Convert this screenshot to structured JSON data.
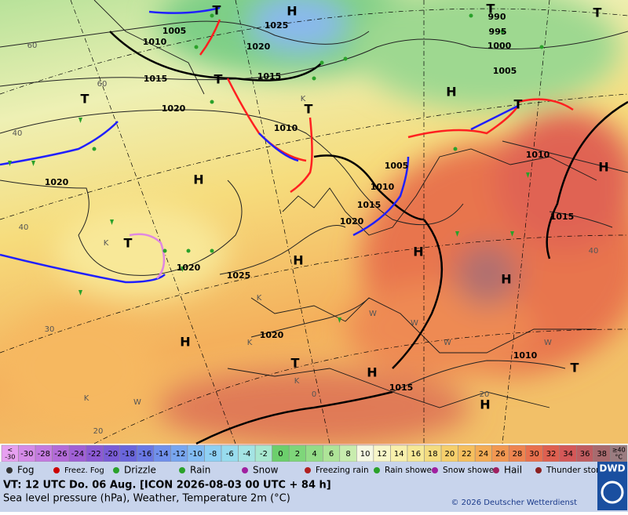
{
  "map": {
    "labels": [
      "1005",
      "1010",
      "1025",
      "1020",
      "1015",
      "1015",
      "1020",
      "1010",
      "1020",
      "1005",
      "1010",
      "1015",
      "1020",
      "1025",
      "1020",
      "1010",
      "1015",
      "1020",
      "1015",
      "1010",
      "1000",
      "995",
      "990",
      "1005",
      "H",
      "H",
      "H",
      "H",
      "H",
      "H",
      "H",
      "H",
      "H",
      "H",
      "T",
      "T",
      "T",
      "T",
      "T",
      "T",
      "T",
      "T",
      "T",
      "T",
      "K",
      "K",
      "K",
      "K",
      "K",
      "K",
      "W",
      "W",
      "W",
      "W",
      "W",
      "60",
      "60",
      "40",
      "40",
      "30",
      "20",
      "0",
      "20",
      "40"
    ]
  },
  "scale": {
    "items": [
      {
        "label": "<",
        "label2": "-30",
        "color": "#e7a0f0"
      },
      {
        "label": "-30",
        "color": "#d58be8"
      },
      {
        "label": "-28",
        "color": "#c47ae0"
      },
      {
        "label": "-26",
        "color": "#b36bd8"
      },
      {
        "label": "-24",
        "color": "#a060d6"
      },
      {
        "label": "-22",
        "color": "#8c5ad4"
      },
      {
        "label": "-20",
        "color": "#7a5cd6"
      },
      {
        "label": "-18",
        "color": "#6a66dc"
      },
      {
        "label": "-16",
        "color": "#6a78e4"
      },
      {
        "label": "-14",
        "color": "#7090ec"
      },
      {
        "label": "-12",
        "color": "#78a6f0"
      },
      {
        "label": "-10",
        "color": "#82bcf4"
      },
      {
        "label": "-8",
        "color": "#8ed0f4"
      },
      {
        "label": "-6",
        "color": "#98dcee"
      },
      {
        "label": "-4",
        "color": "#a4e4e4"
      },
      {
        "label": "-2",
        "color": "#a8e8d0"
      },
      {
        "label": "0",
        "color": "#6ccf6c"
      },
      {
        "label": "2",
        "color": "#7ed67a"
      },
      {
        "label": "4",
        "color": "#94dc88"
      },
      {
        "label": "6",
        "color": "#aee498"
      },
      {
        "label": "8",
        "color": "#c8ecae"
      },
      {
        "label": "10",
        "color": "#f6f8e2"
      },
      {
        "label": "12",
        "color": "#f8f6c8"
      },
      {
        "label": "14",
        "color": "#f8f0ac"
      },
      {
        "label": "16",
        "color": "#f6e896"
      },
      {
        "label": "18",
        "color": "#f4dc80"
      },
      {
        "label": "20",
        "color": "#f6cf6c"
      },
      {
        "label": "22",
        "color": "#f6bf5e"
      },
      {
        "label": "24",
        "color": "#f4ac56"
      },
      {
        "label": "26",
        "color": "#f29852"
      },
      {
        "label": "28",
        "color": "#ee8450"
      },
      {
        "label": "30",
        "color": "#e8704e"
      },
      {
        "label": "32",
        "color": "#de6050"
      },
      {
        "label": "34",
        "color": "#d45858"
      },
      {
        "label": "36",
        "color": "#c05c60"
      },
      {
        "label": "38",
        "color": "#a86a6e"
      },
      {
        "label": "≥40",
        "label2": "°C",
        "color": "#9a7c80"
      }
    ]
  },
  "symbols": [
    "Fog",
    "Freez. Fog",
    "Drizzle",
    "Rain",
    "Snow",
    "Freezing rain",
    "Rain shower",
    "Snow shower",
    "Hail",
    "Thunder storm"
  ],
  "footer": {
    "valid": "VT: 12 UTC Do.  06 Aug. [ICON 2026-08-03  00 UTC + 84 h]",
    "description": "Sea level pressure (hPa), Weather, Temperature 2m (°C)",
    "copyright": "© 2026 Deutscher Wetterdienst",
    "logo": "DWD"
  }
}
